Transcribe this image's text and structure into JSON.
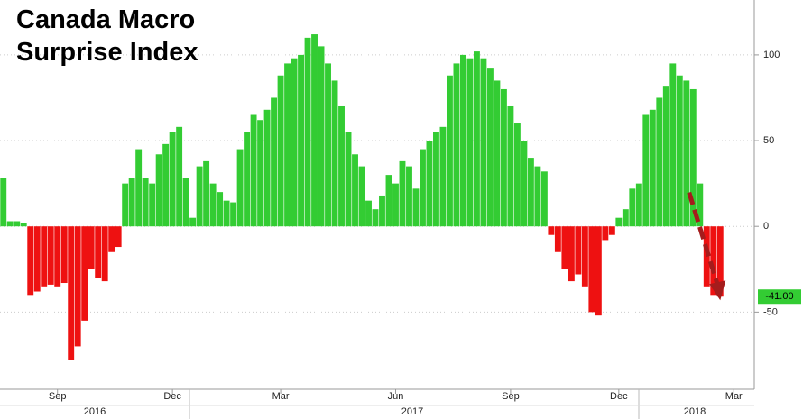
{
  "chart_data": {
    "type": "bar",
    "title": "Canada Macro Surprise Index",
    "values": [
      28,
      3,
      3,
      2,
      -40,
      -38,
      -35,
      -34,
      -35,
      -33,
      -78,
      -70,
      -55,
      -25,
      -30,
      -32,
      -15,
      -12,
      25,
      28,
      45,
      28,
      25,
      42,
      48,
      55,
      58,
      28,
      5,
      35,
      38,
      25,
      20,
      15,
      14,
      45,
      55,
      65,
      62,
      68,
      75,
      88,
      95,
      98,
      100,
      110,
      112,
      105,
      95,
      85,
      70,
      55,
      42,
      35,
      15,
      10,
      18,
      30,
      25,
      38,
      35,
      22,
      45,
      50,
      55,
      58,
      88,
      95,
      100,
      98,
      102,
      98,
      92,
      85,
      80,
      70,
      60,
      50,
      40,
      35,
      32,
      -5,
      -15,
      -25,
      -32,
      -28,
      -35,
      -50,
      -52,
      -8,
      -5,
      5,
      10,
      22,
      25,
      65,
      68,
      75,
      82,
      95,
      88,
      85,
      80,
      25,
      -35,
      -40,
      -41,
      null,
      null,
      null,
      null
    ],
    "categories": [
      null,
      null,
      null,
      null,
      null,
      null,
      null,
      null,
      "Sep",
      null,
      null,
      null,
      null,
      null,
      null,
      null,
      null,
      null,
      null,
      null,
      null,
      null,
      null,
      null,
      null,
      "Dec",
      null,
      null,
      null,
      null,
      null,
      null,
      null,
      null,
      null,
      null,
      null,
      null,
      null,
      null,
      null,
      "Mar",
      null,
      null,
      null,
      null,
      null,
      null,
      null,
      null,
      null,
      null,
      null,
      null,
      null,
      null,
      null,
      null,
      "Jun",
      null,
      null,
      null,
      null,
      null,
      null,
      null,
      null,
      null,
      null,
      null,
      null,
      null,
      null,
      null,
      null,
      "Sep",
      null,
      null,
      null,
      null,
      null,
      null,
      null,
      null,
      null,
      null,
      null,
      null,
      null,
      null,
      null,
      "Dec",
      null,
      null,
      null,
      null,
      null,
      null,
      null,
      null,
      null,
      null,
      null,
      null,
      null,
      null,
      null,
      null,
      "Mar",
      null,
      null
    ],
    "year_labels": [
      "2016",
      "2017",
      "2018"
    ],
    "last_value_label": "-41.00",
    "positive_color": "#33cc33",
    "negative_color": "#ee1111",
    "ylim": [
      -95,
      132
    ],
    "yticks": [
      100,
      50,
      0,
      -50
    ],
    "grid": true
  }
}
